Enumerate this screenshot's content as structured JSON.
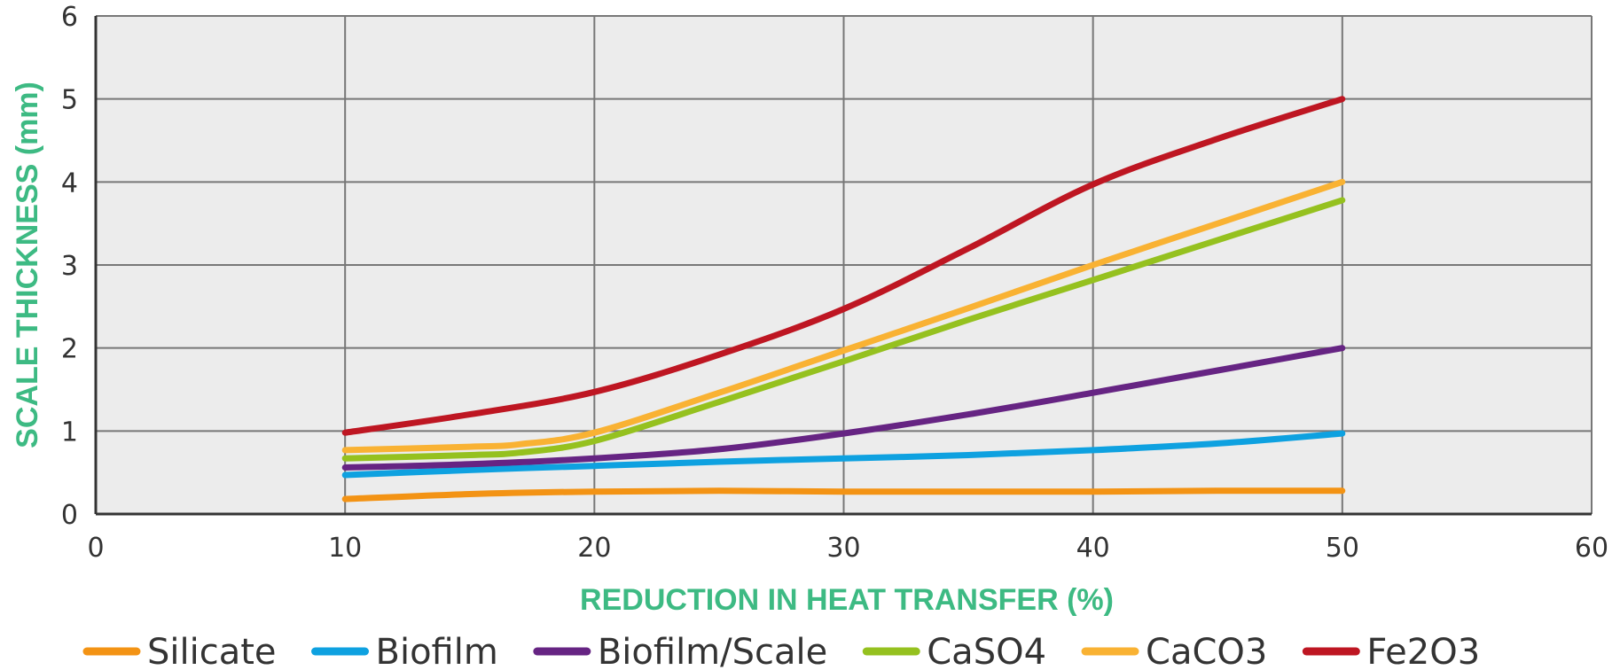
{
  "chart_data": {
    "type": "line",
    "title": "",
    "xlabel": "REDUCTION IN HEAT TRANSFER (%)",
    "ylabel": "SCALE THICKNESS (mm)",
    "xlim": [
      0,
      60
    ],
    "ylim": [
      0,
      6
    ],
    "xticks": [
      "0",
      "10",
      "20",
      "30",
      "40",
      "50",
      "60"
    ],
    "yticks": [
      "0",
      "1",
      "2",
      "3",
      "4",
      "5",
      "6"
    ],
    "grid": true,
    "legend_position": "bottom",
    "axis_title_color": "#3dba83",
    "plot_background": "#ececec",
    "series": [
      {
        "name": "Silicate",
        "color": "#f39314",
        "x": [
          10,
          15,
          20,
          25,
          30,
          35,
          40,
          45,
          50
        ],
        "y": [
          0.18,
          0.24,
          0.27,
          0.28,
          0.27,
          0.27,
          0.27,
          0.28,
          0.28
        ]
      },
      {
        "name": "Biofilm",
        "color": "#0ea1e0",
        "x": [
          10,
          15,
          20,
          25,
          30,
          35,
          40,
          45,
          50
        ],
        "y": [
          0.47,
          0.53,
          0.58,
          0.63,
          0.67,
          0.71,
          0.77,
          0.85,
          0.97
        ]
      },
      {
        "name": "Biofilm/Scale",
        "color": "#662483",
        "x": [
          10,
          15,
          20,
          25,
          30,
          35,
          40,
          45,
          50
        ],
        "y": [
          0.56,
          0.6,
          0.67,
          0.78,
          0.97,
          1.2,
          1.46,
          1.73,
          2.0
        ]
      },
      {
        "name": "CaSO4",
        "color": "#95c11f",
        "x": [
          10,
          15,
          17,
          20,
          25,
          30,
          35,
          40,
          45,
          50
        ],
        "y": [
          0.67,
          0.71,
          0.74,
          0.88,
          1.35,
          1.84,
          2.34,
          2.82,
          3.3,
          3.78
        ]
      },
      {
        "name": "CaCO3",
        "color": "#f9b233",
        "x": [
          10,
          15,
          17,
          20,
          25,
          30,
          35,
          40,
          45,
          50
        ],
        "y": [
          0.77,
          0.81,
          0.84,
          0.98,
          1.46,
          1.97,
          2.48,
          3.0,
          3.5,
          4.0
        ]
      },
      {
        "name": "Fe2O3",
        "color": "#be1622",
        "x": [
          10,
          15,
          20,
          25,
          30,
          35,
          40,
          45,
          50
        ],
        "y": [
          0.98,
          1.2,
          1.47,
          1.92,
          2.47,
          3.2,
          3.97,
          4.52,
          5.0
        ]
      }
    ]
  }
}
